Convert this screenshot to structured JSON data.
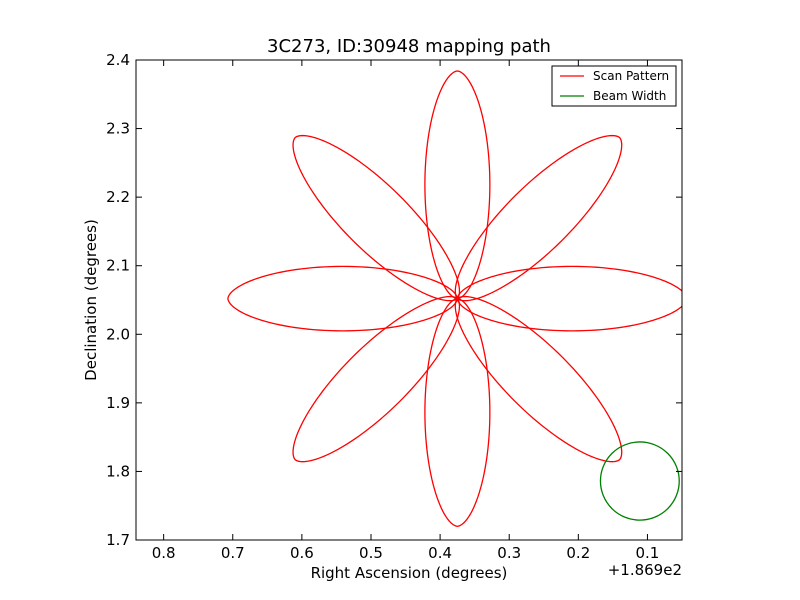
{
  "chart_data": {
    "type": "line",
    "title": "3C273, ID:30948 mapping path",
    "xlabel": "Right Ascension (degrees)",
    "ylabel": "Declination (degrees)",
    "x_offset_label": "+1.869e2",
    "x_display_range": [
      0.84,
      0.05
    ],
    "x_inverted": true,
    "ylim": [
      1.7,
      2.4
    ],
    "x_ticks": [
      "0.8",
      "0.7",
      "0.6",
      "0.5",
      "0.4",
      "0.3",
      "0.2",
      "0.1"
    ],
    "y_ticks": [
      "1.7",
      "1.8",
      "1.9",
      "2.0",
      "2.1",
      "2.2",
      "2.3",
      "2.4"
    ],
    "grid": false,
    "legend_position": "top-right",
    "series": [
      {
        "name": "Scan Pattern",
        "color": "#ff0000",
        "pattern": "eight-petal rose",
        "center": [
          0.375,
          2.052
        ],
        "petal_radius_deg": 0.332,
        "petal_half_width_deg": 0.047,
        "petal_tip_directions_deg": [
          90,
          45,
          0,
          -45,
          -90,
          -135,
          180,
          135
        ]
      },
      {
        "name": "Beam Width",
        "color": "#008000",
        "shape": "circle",
        "center": [
          0.111,
          1.786
        ],
        "radius_deg": 0.057
      }
    ]
  }
}
